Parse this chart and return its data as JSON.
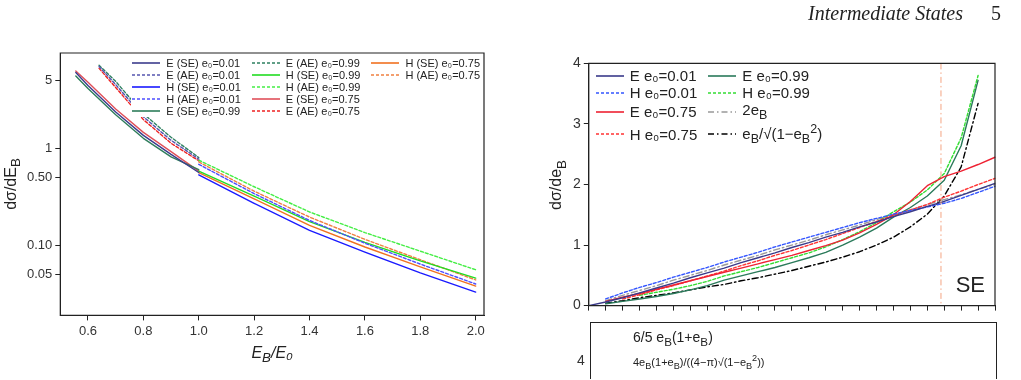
{
  "chart_data": [
    {
      "type": "line",
      "annotations": [
        "Intermediate States",
        "5"
      ],
      "xlabel": "E$_{B}$/E₀",
      "ylabel": "dσ/dE$_{B}$",
      "log": "y",
      "grid": false,
      "legend": "top right",
      "marker": "none",
      "xlim": [
        0.5,
        2.03
      ],
      "xticks": [
        0.6,
        0.8,
        {
          "value": 1,
          "label": "1.0"
        },
        1.2,
        1.4,
        1.6,
        1.8,
        {
          "value": 2,
          "label": "2.0"
        }
      ],
      "ylim": [
        0.019,
        9.5
      ],
      "yticks": [
        {
          "value": 0.05,
          "label": "0.05"
        },
        {
          "value": 0.1,
          "label": "0.10"
        },
        {
          "value": 0.5,
          "label": "0.50"
        },
        1,
        5
      ],
      "series": [
        {
          "name": "E (SE) e₀=0.01",
          "color": "#3c3c8c",
          "line_style": "solid",
          "x": [
            0.556,
            0.6,
            0.7,
            0.8,
            0.9,
            1.0
          ],
          "values": [
            6.0,
            4.4,
            2.35,
            1.35,
            0.86,
            0.56
          ]
        },
        {
          "name": "E (AE) e₀=0.01",
          "color": "#5555b0",
          "line_style": "dashed",
          "x": [
            0.64,
            0.7,
            0.8,
            0.9,
            1.0
          ],
          "values": [
            6.9,
            4.5,
            2.1,
            1.2,
            0.77
          ]
        },
        {
          "name": "H (SE) e₀=0.01",
          "color": "#1a1aff",
          "line_style": "solid",
          "x": [
            1.0,
            1.2,
            1.4,
            1.6,
            1.8,
            2.0
          ],
          "values": [
            0.53,
            0.27,
            0.142,
            0.085,
            0.052,
            0.033
          ]
        },
        {
          "name": "H (AE) e₀=0.01",
          "color": "#4d4dff",
          "line_style": "dashed",
          "x": [
            1.0,
            1.2,
            1.4,
            1.6,
            1.8,
            2.0
          ],
          "values": [
            0.68,
            0.34,
            0.18,
            0.105,
            0.064,
            0.04
          ]
        },
        {
          "name": "E (SE) e₀=0.99",
          "color": "#2e7d5b",
          "line_style": "solid",
          "x": [
            0.556,
            0.6,
            0.7,
            0.8,
            0.9,
            1.0
          ],
          "values": [
            5.5,
            4.1,
            2.2,
            1.26,
            0.81,
            0.6
          ]
        },
        {
          "name": "E (AE) e₀=0.99",
          "color": "#2e8060",
          "line_style": "dashed",
          "x": [
            0.64,
            0.7,
            0.8,
            0.9,
            1.0
          ],
          "values": [
            7.1,
            4.85,
            2.26,
            1.29,
            0.8
          ]
        },
        {
          "name": "H (SE) e₀=0.99",
          "color": "#22dd22",
          "line_style": "solid",
          "x": [
            1.0,
            1.2,
            1.4,
            1.6,
            1.8,
            2.0
          ],
          "values": [
            0.58,
            0.32,
            0.175,
            0.107,
            0.069,
            0.046
          ]
        },
        {
          "name": "H (AE) e₀=0.99",
          "color": "#44ee44",
          "line_style": "dashed",
          "x": [
            1.0,
            1.2,
            1.4,
            1.6,
            1.8,
            2.0
          ],
          "values": [
            0.75,
            0.4,
            0.22,
            0.135,
            0.087,
            0.056
          ]
        },
        {
          "name": "E (SE) e₀=0.75",
          "color": "#e0505a",
          "line_style": "solid",
          "x": [
            0.556,
            0.6,
            0.7,
            0.8,
            0.9,
            1.0
          ],
          "values": [
            6.2,
            4.75,
            2.52,
            1.45,
            0.92,
            0.58
          ]
        },
        {
          "name": "E (AE) e₀=0.75",
          "color": "#ee2222",
          "line_style": "dashed",
          "x": [
            0.64,
            0.7,
            0.8,
            0.9,
            1.0
          ],
          "values": [
            6.6,
            4.2,
            1.96,
            1.12,
            0.74
          ]
        },
        {
          "name": "H (SE) e₀=0.75",
          "color": "#f07020",
          "line_style": "solid",
          "x": [
            1.0,
            1.2,
            1.4,
            1.6,
            1.8,
            2.0
          ],
          "values": [
            0.56,
            0.3,
            0.16,
            0.096,
            0.06,
            0.038
          ]
        },
        {
          "name": "H (AE) e₀=0.75",
          "color": "#f08040",
          "line_style": "dashed",
          "x": [
            1.0,
            1.2,
            1.4,
            1.6,
            1.8,
            2.0
          ],
          "values": [
            0.72,
            0.36,
            0.195,
            0.115,
            0.071,
            0.044
          ]
        }
      ]
    },
    {
      "type": "line",
      "annotations": [
        "SE"
      ],
      "ylabel": "dσ/de$_{B}$",
      "grid": false,
      "legend": "top left",
      "marker": "none",
      "tick_labels": "y",
      "ylim": [
        0,
        4
      ],
      "yticks": [
        0,
        1,
        2,
        3,
        4
      ],
      "categories": [
        null,
        null,
        null,
        null,
        null,
        null,
        null,
        null,
        null,
        null,
        null,
        null,
        null,
        null,
        null,
        null,
        null,
        null,
        null,
        null,
        null,
        null,
        null,
        null,
        null
      ],
      "series": [
        {
          "name": "E e₀=0.01",
          "color": "#3a3a8a",
          "line_style": "solid",
          "values": [
            0,
            0.06,
            0.13,
            0.21,
            0.29,
            0.37,
            0.46,
            0.54,
            0.62,
            0.71,
            0.79,
            0.87,
            0.96,
            1.04,
            1.13,
            1.21,
            1.3,
            1.38,
            1.47,
            1.55,
            1.64,
            1.72,
            1.82,
            1.92,
            2.02
          ]
        },
        {
          "name": "H e₀=0.01",
          "color": "#3355ff",
          "line_style": "dashed",
          "values": [
            null,
            0.11,
            0.21,
            0.3,
            0.38,
            0.47,
            0.55,
            0.63,
            0.72,
            0.8,
            0.88,
            0.97,
            1.05,
            1.13,
            1.21,
            1.29,
            1.37,
            1.44,
            1.51,
            1.57,
            1.63,
            1.69,
            1.77,
            1.87,
            1.97
          ]
        },
        {
          "name": "E e₀=0.75",
          "color": "#ee2233",
          "line_style": "solid",
          "values": [
            null,
            0.07,
            0.14,
            0.2,
            0.27,
            0.34,
            0.41,
            0.48,
            0.55,
            0.62,
            0.69,
            0.76,
            0.83,
            0.91,
            0.99,
            1.08,
            1.2,
            1.34,
            1.5,
            1.72,
            1.98,
            2.13,
            2.22,
            2.33,
            2.45
          ]
        },
        {
          "name": "H e₀=0.75",
          "color": "#ff3333",
          "line_style": "dashed",
          "values": [
            null,
            null,
            0.11,
            0.18,
            0.26,
            0.33,
            0.41,
            0.49,
            0.57,
            0.66,
            0.74,
            0.83,
            0.91,
            1.0,
            1.09,
            1.19,
            1.29,
            1.39,
            1.49,
            1.58,
            1.67,
            1.79,
            1.89,
            2.0,
            2.1
          ]
        },
        {
          "name": "E e₀=0.99",
          "color": "#2a7a5a",
          "line_style": "solid",
          "values": [
            null,
            0.03,
            0.07,
            0.11,
            0.15,
            0.2,
            0.26,
            0.33,
            0.42,
            0.49,
            0.56,
            0.63,
            0.71,
            0.79,
            0.88,
            1.0,
            1.13,
            1.28,
            1.46,
            1.62,
            1.81,
            2.07,
            2.64,
            3.72,
            null
          ]
        },
        {
          "name": "H e₀=0.99",
          "color": "#33dd33",
          "line_style": "dashed",
          "values": [
            null,
            null,
            null,
            0.17,
            0.22,
            0.27,
            0.33,
            0.4,
            0.49,
            0.56,
            0.63,
            0.71,
            0.79,
            0.87,
            0.97,
            1.09,
            1.22,
            1.37,
            1.55,
            1.71,
            1.91,
            2.18,
            2.77,
            3.8,
            null
          ]
        },
        {
          "name": "2e$_{B}$",
          "color": "#999999",
          "line_style": "dotted",
          "values": [
            null,
            0.08,
            0.17,
            0.25,
            0.33,
            0.42,
            0.5,
            0.58,
            0.67,
            0.75,
            0.83,
            0.92,
            1.0,
            1.08,
            1.17,
            1.25,
            1.33,
            1.42,
            1.5,
            1.58,
            1.67,
            1.75,
            1.83,
            1.92,
            2.0
          ]
        },
        {
          "name": "e$_{B}$/√(1−e$_{B}$$^{2}$)",
          "color": "#000000",
          "line_style": "dotted",
          "values": [
            null,
            0.04,
            0.08,
            0.13,
            0.17,
            0.21,
            0.26,
            0.31,
            0.35,
            0.41,
            0.46,
            0.52,
            0.58,
            0.65,
            0.72,
            0.8,
            0.89,
            1.0,
            1.13,
            1.3,
            1.51,
            1.81,
            2.29,
            3.34,
            null
          ]
        }
      ]
    },
    {
      "type": "other",
      "annotations": [
        "6/5 e$_{B}$(1+e$_{B}$)",
        "4e$_{B}$(1+e$_{B}$)/((4−π)√(1−e$_{B}$$^{2}$))",
        "4"
      ]
    }
  ]
}
